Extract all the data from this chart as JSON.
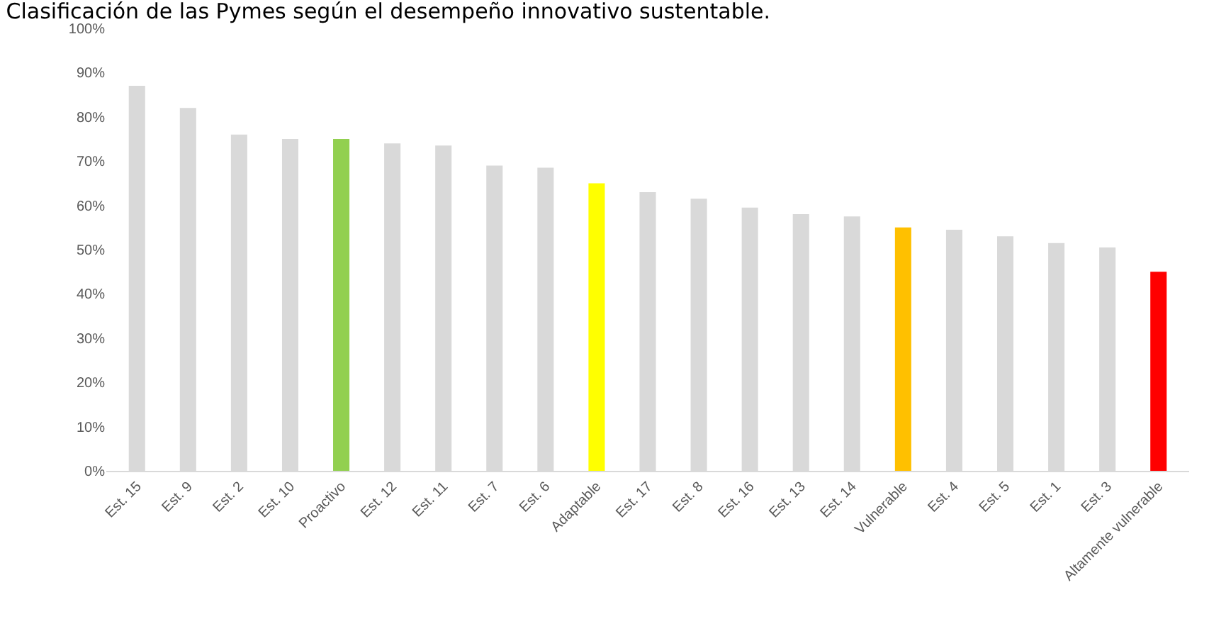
{
  "chart_data": {
    "type": "bar",
    "title": "Clasificación de las Pymes según el desempeño innovativo sustentable.",
    "categories": [
      "Est. 15",
      "Est. 9",
      "Est. 2",
      "Est. 10",
      "Proactivo",
      "Est. 12",
      "Est. 11",
      "Est. 7",
      "Est. 6",
      "Adaptable",
      "Est. 17",
      "Est. 8",
      "Est. 16",
      "Est. 13",
      "Est. 14",
      "Vulnerable",
      "Est. 4",
      "Est. 5",
      "Est. 1",
      "Est. 3",
      "Altamente vulnerable"
    ],
    "values": [
      87,
      82,
      76,
      75,
      75,
      74,
      73.5,
      69,
      68.5,
      65,
      63,
      61.5,
      59.5,
      58,
      57.5,
      55,
      54.5,
      53,
      51.5,
      50.5,
      45
    ],
    "colors": [
      "#d9d9d9",
      "#d9d9d9",
      "#d9d9d9",
      "#d9d9d9",
      "#92d050",
      "#d9d9d9",
      "#d9d9d9",
      "#d9d9d9",
      "#d9d9d9",
      "#ffff00",
      "#d9d9d9",
      "#d9d9d9",
      "#d9d9d9",
      "#d9d9d9",
      "#d9d9d9",
      "#ffc000",
      "#d9d9d9",
      "#d9d9d9",
      "#d9d9d9",
      "#d9d9d9",
      "#ff0000"
    ],
    "ylim": [
      0,
      100
    ],
    "yticks": [
      {
        "value": 0,
        "label": "0%"
      },
      {
        "value": 10,
        "label": "10%"
      },
      {
        "value": 20,
        "label": "20%"
      },
      {
        "value": 30,
        "label": "30%"
      },
      {
        "value": 40,
        "label": "40%"
      },
      {
        "value": 50,
        "label": "50%"
      },
      {
        "value": 60,
        "label": "60%"
      },
      {
        "value": 70,
        "label": "70%"
      },
      {
        "value": 80,
        "label": "80%"
      },
      {
        "value": 90,
        "label": "90%"
      },
      {
        "value": 100,
        "label": "100%"
      }
    ],
    "grid": false
  }
}
